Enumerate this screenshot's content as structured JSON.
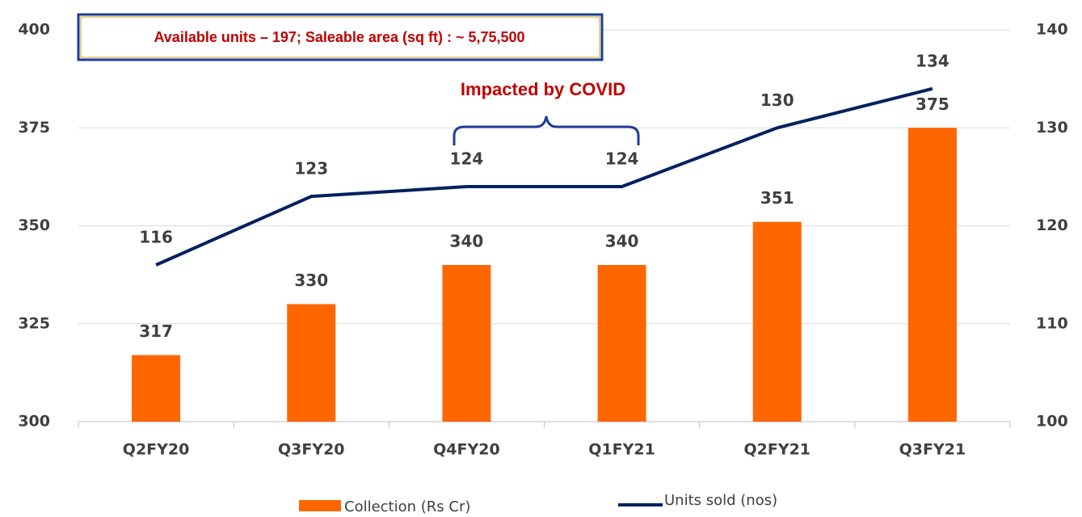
{
  "chart_data": {
    "type": "bar",
    "categories": [
      "Q2FY20",
      "Q3FY20",
      "Q4FY20",
      "Q1FY21",
      "Q2FY21",
      "Q3FY21"
    ],
    "series": [
      {
        "name": "Collection (Rs Cr)",
        "type": "bar",
        "color": "#ff6600",
        "values": [
          317,
          330,
          340,
          340,
          351,
          375
        ]
      },
      {
        "name": "Units sold (nos)",
        "type": "line",
        "axis": "y2",
        "color": "#002060",
        "values": [
          116,
          123,
          124,
          124,
          130,
          134
        ]
      }
    ],
    "ylim": [
      300,
      400
    ],
    "yticks": [
      300,
      325,
      350,
      375,
      400
    ],
    "y2lim": [
      100,
      140
    ],
    "y2ticks": [
      100,
      110,
      120,
      130,
      140
    ],
    "grid": true,
    "annotations": [
      "Available units – 197; Saleable area (sq ft) : ~ 5,75,500",
      "Impacted by COVID"
    ],
    "legend": "bottom"
  }
}
